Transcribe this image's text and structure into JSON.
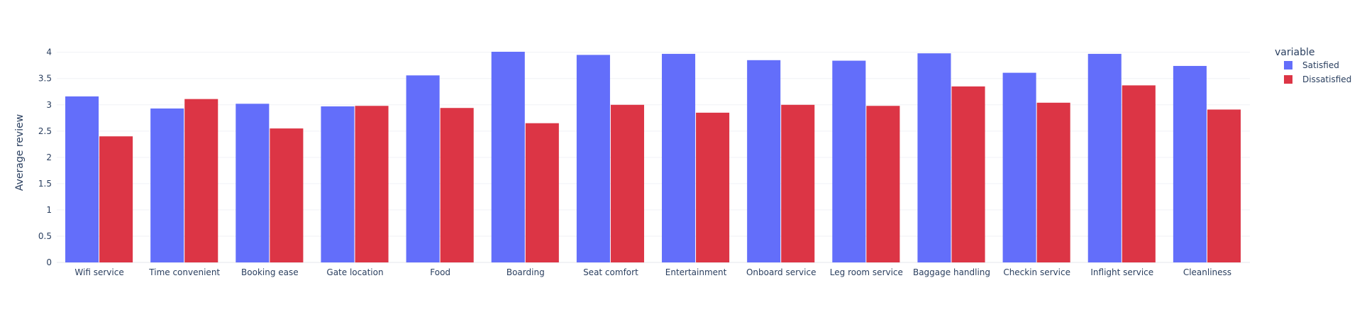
{
  "chart_data": {
    "type": "bar",
    "title": "",
    "xlabel": "",
    "ylabel": "Average review",
    "ylim": [
      0,
      4.05
    ],
    "yticks": [
      0,
      0.5,
      1,
      1.5,
      2,
      2.5,
      3,
      3.5,
      4
    ],
    "ytick_labels": [
      "0",
      "0.5",
      "1",
      "1.5",
      "2",
      "2.5",
      "3",
      "3.5",
      "4"
    ],
    "grid": true,
    "legend_title": "variable",
    "legend_position": "top-right",
    "categories": [
      "Wifi service",
      "Time convenient",
      "Booking ease",
      "Gate location",
      "Food",
      "Boarding",
      "Seat comfort",
      "Entertainment",
      "Onboard service",
      "Leg room service",
      "Baggage handling",
      "Checkin service",
      "Inflight service",
      "Cleanliness"
    ],
    "series": [
      {
        "name": "Satisfied",
        "color": "#636efa",
        "values": [
          3.16,
          2.93,
          3.02,
          2.97,
          3.56,
          4.01,
          3.95,
          3.97,
          3.85,
          3.84,
          3.98,
          3.61,
          3.97,
          3.74
        ]
      },
      {
        "name": "Dissatisfied",
        "color": "#dc3545",
        "values": [
          2.4,
          3.11,
          2.55,
          2.98,
          2.94,
          2.65,
          3.0,
          2.85,
          3.0,
          2.98,
          3.35,
          3.04,
          3.37,
          2.91
        ]
      }
    ]
  }
}
